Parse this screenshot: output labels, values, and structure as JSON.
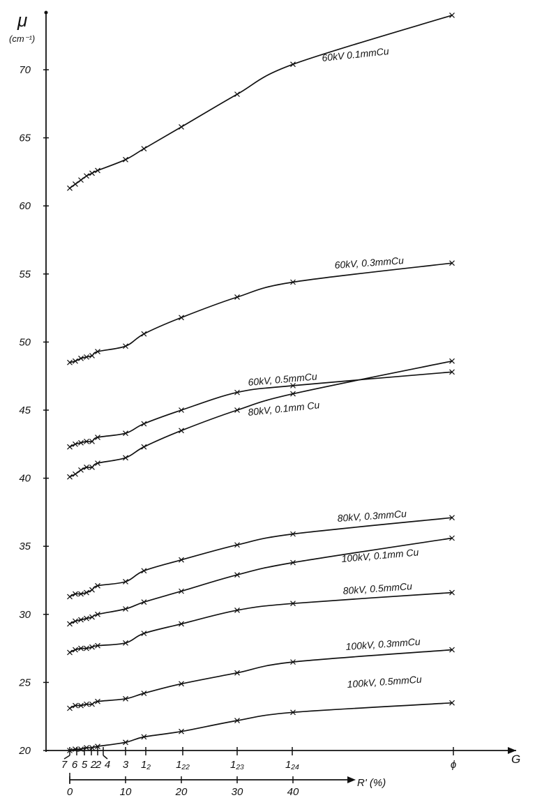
{
  "chart_data": {
    "type": "line",
    "ylabel": "μ",
    "yunit": "(cm⁻¹)",
    "ylim": [
      20,
      75
    ],
    "y_ticks": [
      20,
      25,
      30,
      35,
      40,
      45,
      50,
      55,
      60,
      65,
      70
    ],
    "x_axis_G": {
      "label": "G",
      "ticks": [
        "7",
        "6",
        "5",
        "2",
        "2",
        "4",
        "3",
        "1₂",
        "1₂₂",
        "1₂₃",
        "1₂₄",
        "ϕ"
      ]
    },
    "x_axis_R": {
      "label": "R' (%)",
      "ticks": [
        "0",
        "10",
        "20",
        "30",
        "40"
      ]
    },
    "series": [
      {
        "name": "60kV 0.1mmCu",
        "x": [
          0,
          1,
          2,
          3,
          4,
          5,
          10,
          13.3,
          20,
          30,
          40,
          68
        ],
        "y": [
          61.3,
          61.6,
          61.9,
          62.2,
          62.4,
          62.6,
          63.4,
          64.2,
          65.8,
          68.2,
          70.4,
          74.0
        ]
      },
      {
        "name": "60kV, 0.3mmCu",
        "x": [
          0,
          1,
          2,
          3,
          4,
          5,
          10,
          13.3,
          20,
          30,
          40,
          68
        ],
        "y": [
          48.5,
          48.6,
          48.8,
          48.9,
          49.0,
          49.3,
          49.7,
          50.6,
          51.8,
          53.3,
          54.4,
          55.8
        ]
      },
      {
        "name": "60kV, 0.5mmCu",
        "x": [
          0,
          1,
          2,
          3,
          4,
          5,
          10,
          13.3,
          20,
          30,
          40,
          68
        ],
        "y": [
          42.3,
          42.5,
          42.6,
          42.7,
          42.7,
          43.0,
          43.3,
          44.0,
          45.0,
          46.3,
          46.8,
          47.8
        ]
      },
      {
        "name": "80kV, 0.1mm Cu",
        "x": [
          0,
          1,
          2,
          3,
          4,
          5,
          10,
          13.3,
          20,
          30,
          40,
          68
        ],
        "y": [
          40.1,
          40.3,
          40.6,
          40.8,
          40.8,
          41.1,
          41.5,
          42.3,
          43.5,
          45.0,
          46.2,
          48.6
        ]
      },
      {
        "name": "80kV, 0.3mmCu",
        "x": [
          0,
          1,
          2,
          3,
          4,
          5,
          10,
          13.3,
          20,
          30,
          40,
          68
        ],
        "y": [
          31.3,
          31.5,
          31.5,
          31.6,
          31.8,
          32.1,
          32.4,
          33.2,
          34.0,
          35.1,
          35.9,
          37.1
        ]
      },
      {
        "name": "100kV, 0.1mm Cu",
        "x": [
          0,
          1,
          2,
          3,
          4,
          5,
          10,
          13.3,
          20,
          30,
          40,
          68
        ],
        "y": [
          29.3,
          29.5,
          29.6,
          29.7,
          29.8,
          30.0,
          30.4,
          30.9,
          31.7,
          32.9,
          33.8,
          35.6
        ]
      },
      {
        "name": "80kV, 0.5mmCu",
        "x": [
          0,
          1,
          2,
          3,
          4,
          5,
          10,
          13.3,
          20,
          30,
          40,
          68
        ],
        "y": [
          27.2,
          27.4,
          27.5,
          27.5,
          27.6,
          27.7,
          27.9,
          28.6,
          29.3,
          30.3,
          30.8,
          31.6
        ]
      },
      {
        "name": "100kV, 0.3mmCu",
        "x": [
          0,
          1,
          2,
          3,
          4,
          5,
          10,
          13.3,
          20,
          30,
          40,
          68
        ],
        "y": [
          23.1,
          23.3,
          23.3,
          23.4,
          23.4,
          23.6,
          23.8,
          24.2,
          24.9,
          25.7,
          26.5,
          27.4
        ]
      },
      {
        "name": "100kV, 0.5mmCu",
        "x": [
          0,
          1,
          2,
          3,
          4,
          5,
          10,
          13.3,
          20,
          30,
          40,
          68
        ],
        "y": [
          20.0,
          20.1,
          20.1,
          20.2,
          20.2,
          20.3,
          20.6,
          21.0,
          21.4,
          22.2,
          22.8,
          23.5
        ]
      }
    ]
  }
}
